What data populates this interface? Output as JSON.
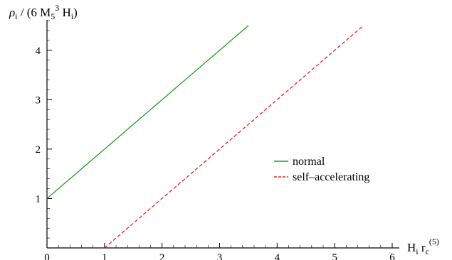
{
  "chart_data": {
    "type": "line",
    "y_axis_label": {
      "rho": "ρ",
      "rho_sub": "i",
      "middle": " / (6 M",
      "m_sub": "5",
      "m_sup": "3",
      "h": " H",
      "h_sub": "i",
      "close": ")"
    },
    "x_axis_label": {
      "h": "H",
      "h_sub": "i",
      "r": " r",
      "r_sub": "c",
      "r_sup": "(5)"
    },
    "xlim": [
      0,
      6
    ],
    "ylim": [
      0,
      4.5
    ],
    "x_ticks": [
      "0",
      "1",
      "2",
      "3",
      "4",
      "5",
      "6"
    ],
    "y_ticks": [
      "1",
      "2",
      "3",
      "4"
    ],
    "grid": false,
    "legend_position": "right",
    "series": [
      {
        "name": "normal",
        "color": "#1a9e1a",
        "dash": "solid",
        "x": [
          0,
          3.5
        ],
        "y": [
          1,
          4.5
        ]
      },
      {
        "name": "self–accelerating",
        "color": "#e8202a",
        "dash": "dashed",
        "x": [
          1,
          5.5
        ],
        "y": [
          0,
          4.5
        ]
      }
    ]
  }
}
